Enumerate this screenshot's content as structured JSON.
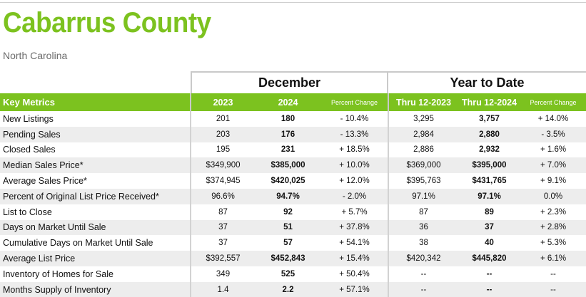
{
  "header": {
    "title": "Cabarrus County",
    "subtitle": "North Carolina"
  },
  "groups": {
    "december": "December",
    "year_to_date": "Year to Date"
  },
  "columns": {
    "metric": "Key Metrics",
    "dec_2023": "2023",
    "dec_2024": "2024",
    "dec_pct": "Percent Change",
    "ytd_2023": "Thru 12-2023",
    "ytd_2024": "Thru 12-2024",
    "ytd_pct": "Percent Change"
  },
  "rows": [
    {
      "metric": "New Listings",
      "dec_2023": "201",
      "dec_2024": "180",
      "dec_pct": "- 10.4%",
      "ytd_2023": "3,295",
      "ytd_2024": "3,757",
      "ytd_pct": "+ 14.0%"
    },
    {
      "metric": "Pending Sales",
      "dec_2023": "203",
      "dec_2024": "176",
      "dec_pct": "- 13.3%",
      "ytd_2023": "2,984",
      "ytd_2024": "2,880",
      "ytd_pct": "- 3.5%"
    },
    {
      "metric": "Closed Sales",
      "dec_2023": "195",
      "dec_2024": "231",
      "dec_pct": "+ 18.5%",
      "ytd_2023": "2,886",
      "ytd_2024": "2,932",
      "ytd_pct": "+ 1.6%"
    },
    {
      "metric": "Median Sales Price*",
      "dec_2023": "$349,900",
      "dec_2024": "$385,000",
      "dec_pct": "+ 10.0%",
      "ytd_2023": "$369,000",
      "ytd_2024": "$395,000",
      "ytd_pct": "+ 7.0%"
    },
    {
      "metric": "Average Sales Price*",
      "dec_2023": "$374,945",
      "dec_2024": "$420,025",
      "dec_pct": "+ 12.0%",
      "ytd_2023": "$395,763",
      "ytd_2024": "$431,765",
      "ytd_pct": "+ 9.1%"
    },
    {
      "metric": "Percent of Original List Price Received*",
      "dec_2023": "96.6%",
      "dec_2024": "94.7%",
      "dec_pct": "- 2.0%",
      "ytd_2023": "97.1%",
      "ytd_2024": "97.1%",
      "ytd_pct": "0.0%"
    },
    {
      "metric": "List to Close",
      "dec_2023": "87",
      "dec_2024": "92",
      "dec_pct": "+ 5.7%",
      "ytd_2023": "87",
      "ytd_2024": "89",
      "ytd_pct": "+ 2.3%"
    },
    {
      "metric": "Days on Market Until Sale",
      "dec_2023": "37",
      "dec_2024": "51",
      "dec_pct": "+ 37.8%",
      "ytd_2023": "36",
      "ytd_2024": "37",
      "ytd_pct": "+ 2.8%"
    },
    {
      "metric": "Cumulative Days on Market Until Sale",
      "dec_2023": "37",
      "dec_2024": "57",
      "dec_pct": "+ 54.1%",
      "ytd_2023": "38",
      "ytd_2024": "40",
      "ytd_pct": "+ 5.3%"
    },
    {
      "metric": "Average List Price",
      "dec_2023": "$392,557",
      "dec_2024": "$452,843",
      "dec_pct": "+ 15.4%",
      "ytd_2023": "$420,342",
      "ytd_2024": "$445,820",
      "ytd_pct": "+ 6.1%"
    },
    {
      "metric": "Inventory of Homes for Sale",
      "dec_2023": "349",
      "dec_2024": "525",
      "dec_pct": "+ 50.4%",
      "ytd_2023": "--",
      "ytd_2024": "--",
      "ytd_pct": "--"
    },
    {
      "metric": "Months Supply of Inventory",
      "dec_2023": "1.4",
      "dec_2024": "2.2",
      "dec_pct": "+ 57.1%",
      "ytd_2023": "--",
      "ytd_2024": "--",
      "ytd_pct": "--"
    }
  ],
  "colors": {
    "accent_green": "#7cc21f",
    "row_alt": "#ededed",
    "subtitle_gray": "#6b6b6b"
  }
}
